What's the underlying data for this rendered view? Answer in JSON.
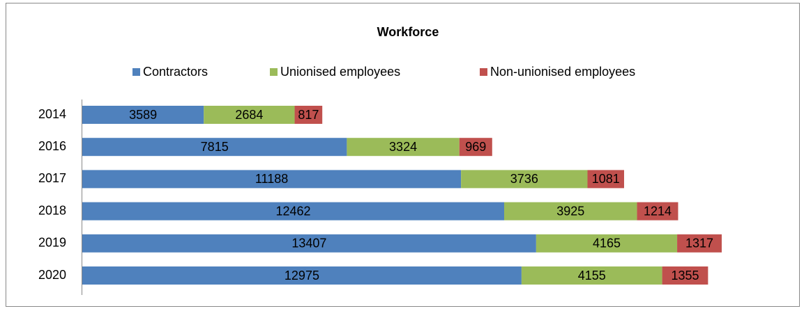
{
  "chart_data": {
    "type": "stacked_barh",
    "title": "Workforce",
    "categories": [
      "2014",
      "2016",
      "2017",
      "2018",
      "2019",
      "2020"
    ],
    "series": [
      {
        "name": "Contractors",
        "color": "#4f81bd",
        "values": [
          3589,
          7815,
          11188,
          12462,
          13407,
          12975
        ]
      },
      {
        "name": "Unionised employees",
        "color": "#9bbb59",
        "values": [
          2684,
          3324,
          3736,
          3925,
          4165,
          4155
        ]
      },
      {
        "name": "Non-unionised employees",
        "color": "#c0504d",
        "values": [
          817,
          969,
          1081,
          1214,
          1317,
          1355
        ]
      }
    ],
    "legend": "top"
  }
}
